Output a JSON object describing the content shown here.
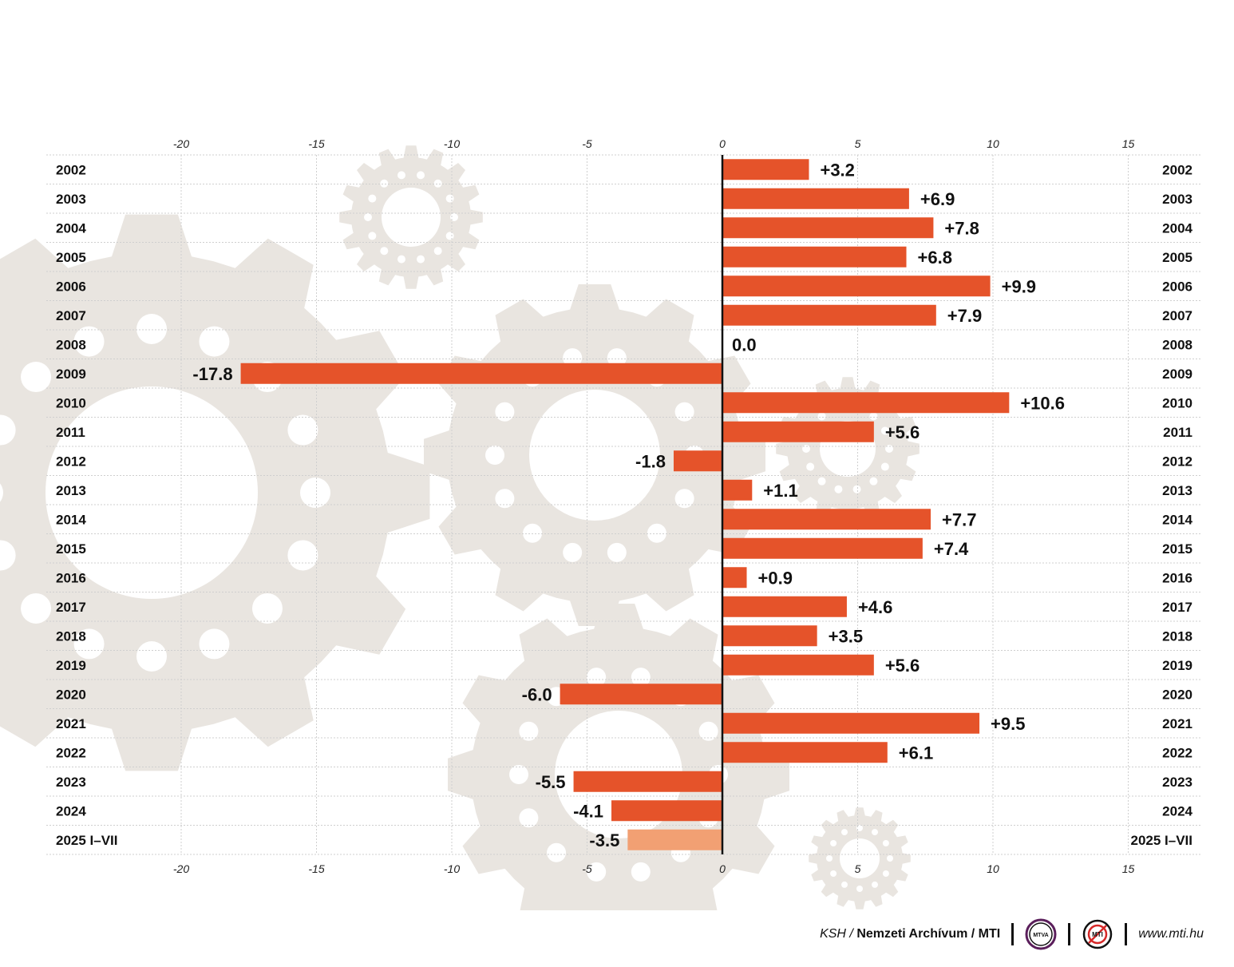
{
  "chart_data": {
    "type": "bar",
    "orientation": "horizontal",
    "categories": [
      "2002",
      "2003",
      "2004",
      "2005",
      "2006",
      "2007",
      "2008",
      "2009",
      "2010",
      "2011",
      "2012",
      "2013",
      "2014",
      "2015",
      "2016",
      "2017",
      "2018",
      "2019",
      "2020",
      "2021",
      "2022",
      "2023",
      "2024",
      "2025 I–VII"
    ],
    "values": [
      3.2,
      6.9,
      7.8,
      6.8,
      9.9,
      7.9,
      0.0,
      -17.8,
      10.6,
      5.6,
      -1.8,
      1.1,
      7.7,
      7.4,
      0.9,
      4.6,
      3.5,
      5.6,
      -6.0,
      9.5,
      6.1,
      -5.5,
      -4.1,
      -3.5
    ],
    "value_labels": [
      "+3.2",
      "+6.9",
      "+7.8",
      "+6.8",
      "+9.9",
      "+7.9",
      "0.0",
      "-17.8",
      "+10.6",
      "+5.6",
      "-1.8",
      "+1.1",
      "+7.7",
      "+7.4",
      "+0.9",
      "+4.6",
      "+3.5",
      "+5.6",
      "-6.0",
      "+9.5",
      "+6.1",
      "-5.5",
      "-4.1",
      "-3.5"
    ],
    "highlighted_categories": [
      "2025 I–VII"
    ],
    "xlim": [
      -25,
      17.7
    ],
    "x_ticks": [
      -20,
      -15,
      -10,
      -5,
      0,
      5,
      10,
      15
    ],
    "x_tick_labels": [
      "-20",
      "-15",
      "-10",
      "-5",
      "0",
      "5",
      "10",
      "15"
    ],
    "grid": true,
    "bar_color": "#E5532A",
    "highlight_color": "#F2A073",
    "background_gear_color": "#E9E5E0"
  },
  "footer": {
    "source_prefix": "KSH /",
    "source_main": "Nemzeti Archívum / MTI",
    "logo1": "MTVA",
    "logo2": "MTI",
    "url": "www.mti.hu"
  },
  "icons": {
    "background": "gear-icon",
    "logo1": "mtva-logo-icon",
    "logo2": "mti-logo-icon"
  }
}
